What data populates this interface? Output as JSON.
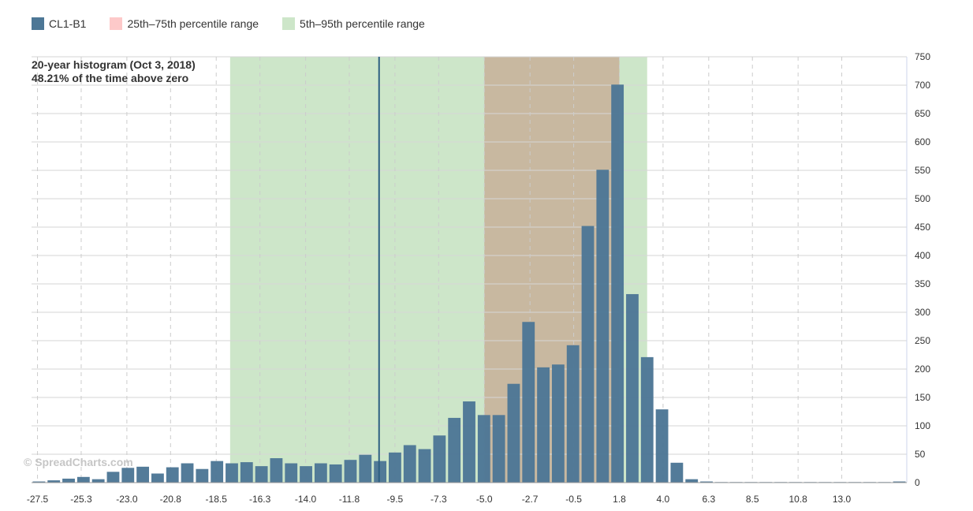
{
  "legend": {
    "items": [
      {
        "label": "CL1-B1",
        "color": "#4d7796"
      },
      {
        "label": "25th–75th percentile range",
        "color": "#fdc9c9"
      },
      {
        "label": "5th–95th percentile range",
        "color": "#cde6c9"
      }
    ]
  },
  "title": {
    "line1": "20-year histogram (Oct 3, 2018)",
    "line2": "48.21% of the time above zero"
  },
  "watermark": "© SpreadCharts.com",
  "chart_data": {
    "type": "bar",
    "series": [
      {
        "name": "CL1-B1",
        "color": "#4d7796",
        "values": [
          2,
          4,
          7,
          10,
          6,
          19,
          26,
          28,
          16,
          27,
          34,
          24,
          38,
          34,
          36,
          29,
          43,
          34,
          29,
          34,
          32,
          40,
          49,
          38,
          53,
          66,
          59,
          83,
          114,
          143,
          119,
          119,
          174,
          283,
          203,
          208,
          242,
          452,
          551,
          701,
          332,
          221,
          129,
          35,
          6,
          2,
          1,
          1,
          1,
          1,
          1,
          1,
          1,
          1,
          1,
          1,
          1,
          1,
          2
        ]
      }
    ],
    "xaxis": {
      "min": -27.8,
      "bin_width": 0.747,
      "tick_labels": [
        {
          "label": "-27.5",
          "value": -27.5
        },
        {
          "label": "-25.3",
          "value": -25.3
        },
        {
          "label": "-23.0",
          "value": -23.0
        },
        {
          "label": "-20.8",
          "value": -20.8
        },
        {
          "label": "-18.5",
          "value": -18.5
        },
        {
          "label": "-16.3",
          "value": -16.3
        },
        {
          "label": "-14.0",
          "value": -14.0
        },
        {
          "label": "-11.8",
          "value": -11.8
        },
        {
          "label": "-9.5",
          "value": -9.5
        },
        {
          "label": "-7.3",
          "value": -7.3
        },
        {
          "label": "-5.0",
          "value": -5.0
        },
        {
          "label": "-2.7",
          "value": -2.7
        },
        {
          "label": "-0.5",
          "value": -0.5
        },
        {
          "label": "1.8",
          "value": 1.8
        },
        {
          "label": "4.0",
          "value": 4.0
        },
        {
          "label": "6.3",
          "value": 6.3
        },
        {
          "label": "8.5",
          "value": 8.5
        },
        {
          "label": "10.8",
          "value": 10.8
        },
        {
          "label": "13.0",
          "value": 13.0
        }
      ]
    },
    "ylim": [
      0,
      750
    ],
    "yticks": [
      0,
      50,
      100,
      150,
      200,
      250,
      300,
      350,
      400,
      450,
      500,
      550,
      600,
      650,
      700,
      750
    ],
    "y_axis_position": "right",
    "bands": [
      {
        "name": "5th–95th percentile range",
        "from": -17.8,
        "to": 3.2,
        "color": "#cde6c9"
      },
      {
        "name": "25th–75th percentile range",
        "from": -5.0,
        "to": 1.8,
        "color": "#c8b8a0"
      }
    ],
    "current_value_line": {
      "value": -10.3,
      "color": "#2e5f82"
    },
    "grid": {
      "horizontal": true,
      "vertical_dashed": true
    },
    "legend_position": "top-left"
  }
}
